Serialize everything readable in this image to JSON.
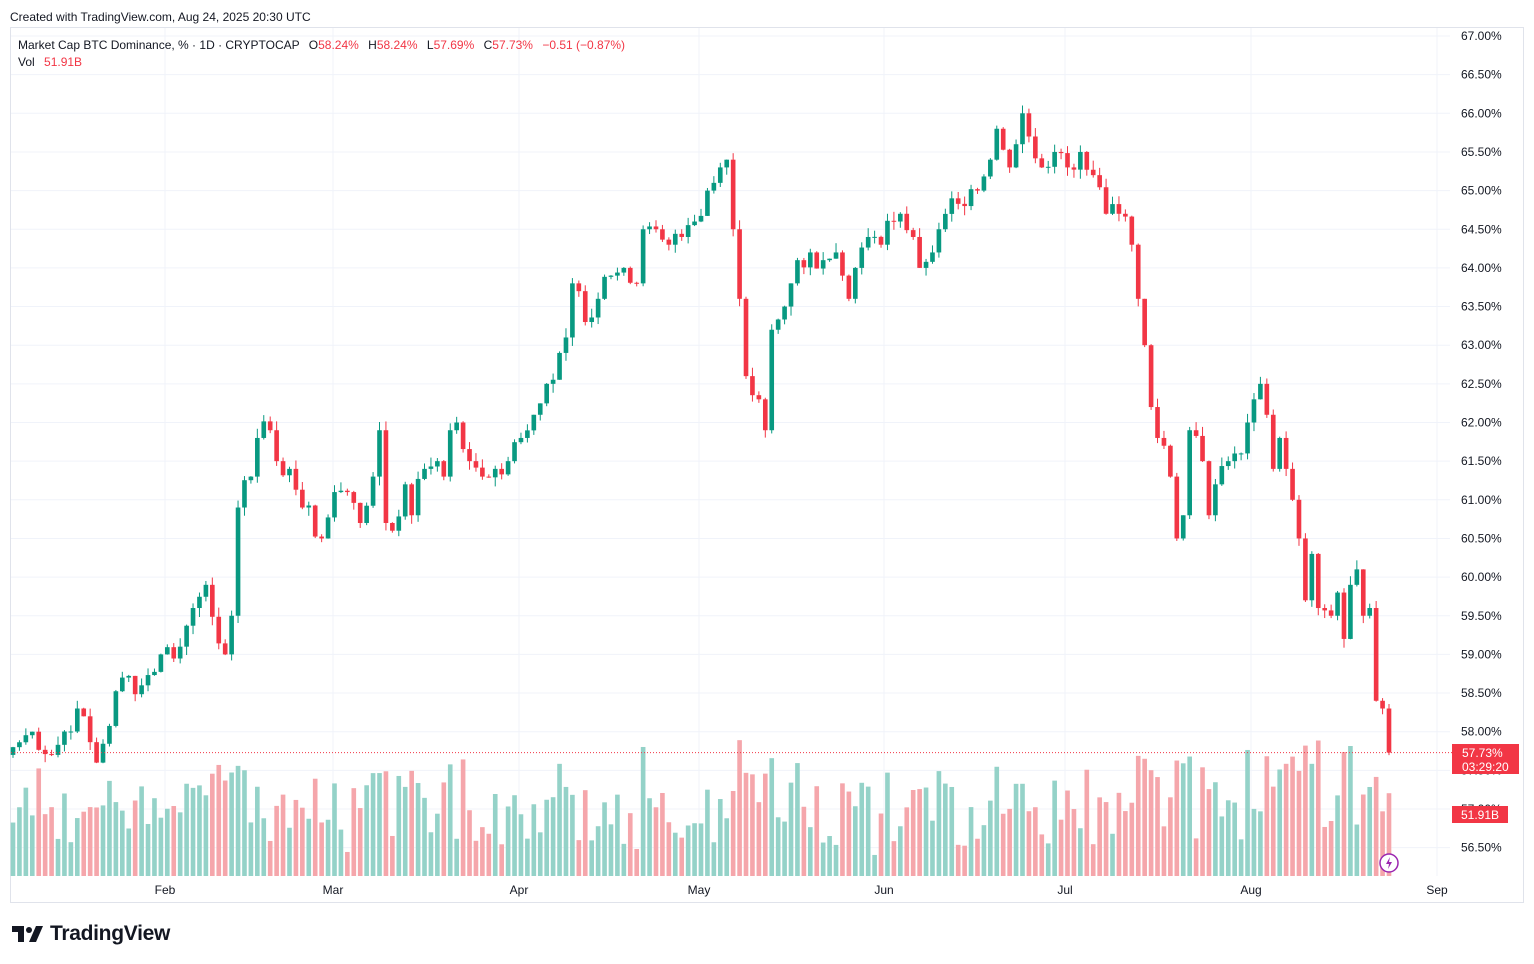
{
  "header": {
    "created": "Created with TradingView.com, Aug 24, 2025 20:30 UTC"
  },
  "legend": {
    "symbol": "Market Cap BTC Dominance, % · 1D · CRYPTOCAP",
    "o_label": "O",
    "o": "58.24%",
    "h_label": "H",
    "h": "58.24%",
    "l_label": "L",
    "l": "57.69%",
    "c_label": "C",
    "c": "57.73%",
    "change": "−0.51 (−0.87%)",
    "vol_label": "Vol",
    "vol": "51.91B"
  },
  "price_badge": {
    "value": "57.73%",
    "countdown": "03:29:20"
  },
  "vol_badge": "51.91B",
  "brand": {
    "name": "TradingView"
  },
  "colors": {
    "up": "#089981",
    "down": "#f23645",
    "vol_up": "#94d2c8",
    "vol_down": "#f5a6ab",
    "grid": "#f0f3fa",
    "text": "#131722"
  },
  "chart_data": {
    "type": "candlestick",
    "symbol": "Market Cap BTC Dominance, %",
    "interval": "1D",
    "x_ticks": [
      "Feb",
      "Mar",
      "Apr",
      "May",
      "Jun",
      "Jul",
      "Aug",
      "Sep"
    ],
    "y_ticks": [
      "67.00%",
      "66.50%",
      "66.00%",
      "65.50%",
      "65.00%",
      "64.50%",
      "64.00%",
      "63.50%",
      "63.00%",
      "62.50%",
      "62.00%",
      "61.50%",
      "61.00%",
      "60.50%",
      "60.00%",
      "59.50%",
      "59.00%",
      "58.50%",
      "58.00%",
      "57.50%",
      "57.00%",
      "56.50%"
    ],
    "ylim": [
      56.2,
      67.1
    ],
    "last_close": 57.73,
    "grid": true,
    "close_waypoints": [
      [
        0,
        57.8
      ],
      [
        3,
        58.0
      ],
      [
        6,
        57.7
      ],
      [
        10,
        58.3
      ],
      [
        13,
        57.6
      ],
      [
        17,
        58.7
      ],
      [
        20,
        58.6
      ],
      [
        23,
        59.0
      ],
      [
        26,
        59.1
      ],
      [
        28,
        59.6
      ],
      [
        30,
        59.9
      ],
      [
        33,
        59.0
      ],
      [
        34,
        59.5
      ],
      [
        35,
        60.9
      ],
      [
        37,
        61.3
      ],
      [
        38,
        61.8
      ],
      [
        40,
        61.9
      ],
      [
        41,
        61.5
      ],
      [
        43,
        61.4
      ],
      [
        45,
        60.9
      ],
      [
        48,
        60.5
      ],
      [
        50,
        61.1
      ],
      [
        52,
        61.1
      ],
      [
        54,
        60.7
      ],
      [
        56,
        61.3
      ],
      [
        57,
        61.9
      ],
      [
        58,
        60.7
      ],
      [
        59,
        60.6
      ],
      [
        61,
        61.2
      ],
      [
        62,
        60.8
      ],
      [
        64,
        61.4
      ],
      [
        66,
        61.5
      ],
      [
        67,
        61.3
      ],
      [
        68,
        61.9
      ],
      [
        69,
        62.0
      ],
      [
        71,
        61.5
      ],
      [
        73,
        61.3
      ],
      [
        75,
        61.4
      ],
      [
        77,
        61.5
      ],
      [
        79,
        61.8
      ],
      [
        81,
        62.1
      ],
      [
        83,
        62.5
      ],
      [
        85,
        62.9
      ],
      [
        86,
        63.1
      ],
      [
        87,
        63.8
      ],
      [
        89,
        63.3
      ],
      [
        91,
        63.6
      ],
      [
        93,
        63.9
      ],
      [
        95,
        64.0
      ],
      [
        97,
        63.8
      ],
      [
        98,
        64.5
      ],
      [
        100,
        64.5
      ],
      [
        102,
        64.3
      ],
      [
        104,
        64.4
      ],
      [
        106,
        64.6
      ],
      [
        108,
        65.0
      ],
      [
        109,
        65.1
      ],
      [
        110,
        65.3
      ],
      [
        111,
        65.4
      ],
      [
        112,
        64.5
      ],
      [
        113,
        63.6
      ],
      [
        114,
        62.6
      ],
      [
        116,
        62.3
      ],
      [
        117,
        61.9
      ],
      [
        118,
        63.2
      ],
      [
        120,
        63.5
      ],
      [
        121,
        63.8
      ],
      [
        122,
        64.1
      ],
      [
        124,
        64.2
      ],
      [
        126,
        64.1
      ],
      [
        128,
        64.2
      ],
      [
        129,
        63.9
      ],
      [
        130,
        63.6
      ],
      [
        131,
        64.0
      ],
      [
        133,
        64.4
      ],
      [
        135,
        64.3
      ],
      [
        137,
        64.6
      ],
      [
        138,
        64.7
      ],
      [
        140,
        64.4
      ],
      [
        141,
        64.0
      ],
      [
        143,
        64.2
      ],
      [
        144,
        64.5
      ],
      [
        146,
        64.9
      ],
      [
        148,
        64.8
      ],
      [
        150,
        65.0
      ],
      [
        152,
        65.4
      ],
      [
        153,
        65.8
      ],
      [
        155,
        65.3
      ],
      [
        156,
        65.6
      ],
      [
        157,
        66.0
      ],
      [
        158,
        65.7
      ],
      [
        160,
        65.3
      ],
      [
        162,
        65.5
      ],
      [
        164,
        65.3
      ],
      [
        166,
        65.5
      ],
      [
        168,
        65.2
      ],
      [
        170,
        64.7
      ],
      [
        172,
        64.7
      ],
      [
        174,
        64.3
      ],
      [
        175,
        63.6
      ],
      [
        176,
        63.0
      ],
      [
        177,
        62.2
      ],
      [
        178,
        61.8
      ],
      [
        180,
        61.3
      ],
      [
        181,
        60.5
      ],
      [
        182,
        60.8
      ],
      [
        183,
        61.9
      ],
      [
        185,
        61.5
      ],
      [
        186,
        60.8
      ],
      [
        187,
        61.2
      ],
      [
        189,
        61.5
      ],
      [
        191,
        61.6
      ],
      [
        192,
        62.0
      ],
      [
        193,
        62.3
      ],
      [
        194,
        62.5
      ],
      [
        195,
        62.1
      ],
      [
        196,
        61.4
      ],
      [
        197,
        61.8
      ],
      [
        198,
        61.4
      ],
      [
        199,
        61.0
      ],
      [
        200,
        60.5
      ],
      [
        201,
        59.7
      ],
      [
        202,
        60.3
      ],
      [
        203,
        59.6
      ],
      [
        205,
        59.5
      ],
      [
        206,
        59.8
      ],
      [
        207,
        59.2
      ],
      [
        208,
        59.9
      ],
      [
        209,
        60.1
      ],
      [
        210,
        59.5
      ],
      [
        211,
        59.6
      ],
      [
        212,
        58.4
      ],
      [
        213,
        58.3
      ],
      [
        214,
        57.73
      ]
    ],
    "volume_note": "volume bars at bottom, last bar 51.91B"
  }
}
